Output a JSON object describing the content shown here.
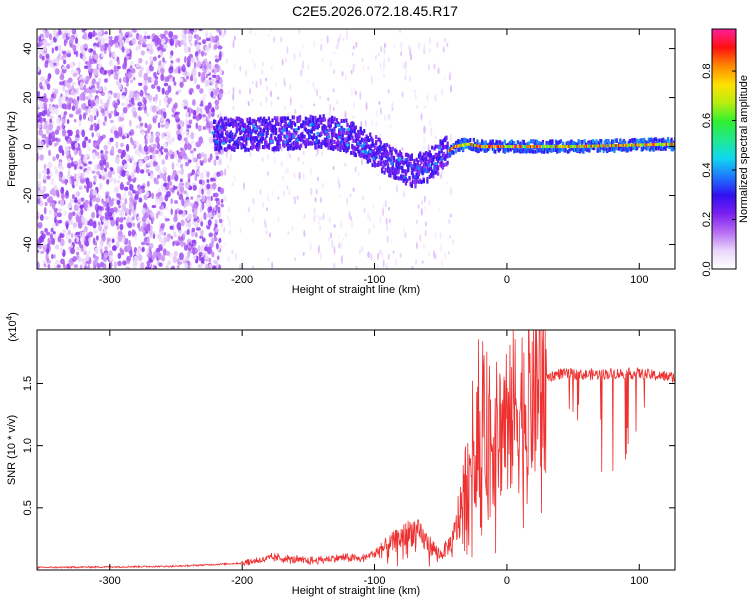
{
  "title": "C2E5.2026.072.18.45.R17",
  "chart_data": [
    {
      "type": "heatmap",
      "xlabel": "Height of straight line (km)",
      "ylabel": "Frequency (Hz)",
      "xlim": [
        -355,
        127
      ],
      "ylim": [
        -50,
        48
      ],
      "xticks": [
        -300,
        -200,
        -100,
        0,
        100
      ],
      "xtick_labels": [
        "-300",
        "-200",
        "-100",
        "0",
        "100"
      ],
      "yticks": [
        -40,
        -20,
        0,
        20,
        40
      ],
      "ytick_labels": [
        "-40",
        "-20",
        "0",
        "20",
        "40"
      ],
      "colorbar": {
        "label": "Normalized spectral amplitude",
        "range": [
          0,
          0.97
        ],
        "ticks": [
          0.0,
          0.2,
          0.4,
          0.6,
          0.8
        ],
        "tick_labels": [
          "0.0",
          "0.2",
          "0.4",
          "0.6",
          "0.8"
        ],
        "colors": [
          "#ffffff",
          "#e9d6fb",
          "#b76cf2",
          "#7a1ff0",
          "#3010f0",
          "#1e78ff",
          "#10d8f0",
          "#20e890",
          "#30f030",
          "#b8ee10",
          "#ffe000",
          "#ff8800",
          "#ff1010",
          "#ff1f9a"
        ]
      },
      "ridge_center_hz": [
        {
          "x": -222,
          "y": 5
        },
        {
          "x": -180,
          "y": 5
        },
        {
          "x": -140,
          "y": 6
        },
        {
          "x": -120,
          "y": 4
        },
        {
          "x": -100,
          "y": -2
        },
        {
          "x": -85,
          "y": -8
        },
        {
          "x": -70,
          "y": -10
        },
        {
          "x": -60,
          "y": -8
        },
        {
          "x": -50,
          "y": -4
        },
        {
          "x": -40,
          "y": 0
        },
        {
          "x": -30,
          "y": 1
        },
        {
          "x": -20,
          "y": 0
        },
        {
          "x": 0,
          "y": 0
        },
        {
          "x": 50,
          "y": 0
        },
        {
          "x": 127,
          "y": 1
        }
      ]
    },
    {
      "type": "line",
      "xlabel": "Height of straight line (km)",
      "ylabel": "SNR (10 * v/v)",
      "multiplier_label": "(x10",
      "multiplier_exp": "4",
      "multiplier_close": ")",
      "xlim": [
        -355,
        127
      ],
      "ylim": [
        0,
        19300
      ],
      "xticks": [
        -300,
        -200,
        -100,
        0,
        100
      ],
      "xtick_labels": [
        "-300",
        "-200",
        "-100",
        "0",
        "100"
      ],
      "yticks": [
        5000,
        10000,
        15000
      ],
      "ytick_labels": [
        "0.5",
        "1.0",
        "1.5"
      ],
      "color": "#ee3030",
      "series": [
        {
          "name": "SNR",
          "points": [
            {
              "x": -355,
              "y": 200
            },
            {
              "x": -300,
              "y": 250
            },
            {
              "x": -250,
              "y": 300
            },
            {
              "x": -200,
              "y": 550
            },
            {
              "x": -175,
              "y": 1000
            },
            {
              "x": -150,
              "y": 700
            },
            {
              "x": -125,
              "y": 1000
            },
            {
              "x": -110,
              "y": 900
            },
            {
              "x": -95,
              "y": 1600
            },
            {
              "x": -80,
              "y": 2600
            },
            {
              "x": -70,
              "y": 3200
            },
            {
              "x": -60,
              "y": 2200
            },
            {
              "x": -50,
              "y": 1200
            },
            {
              "x": -40,
              "y": 2500
            },
            {
              "x": -35,
              "y": 5000
            },
            {
              "x": -30,
              "y": 7500
            },
            {
              "x": -25,
              "y": 10500
            },
            {
              "x": -20,
              "y": 12000
            },
            {
              "x": -15,
              "y": 11500
            },
            {
              "x": -10,
              "y": 10500
            },
            {
              "x": -5,
              "y": 11500
            },
            {
              "x": 0,
              "y": 12500
            },
            {
              "x": 10,
              "y": 13000
            },
            {
              "x": 20,
              "y": 14500
            },
            {
              "x": 30,
              "y": 15500
            },
            {
              "x": 40,
              "y": 15800
            },
            {
              "x": 60,
              "y": 15700
            },
            {
              "x": 80,
              "y": 15800
            },
            {
              "x": 100,
              "y": 15800
            },
            {
              "x": 115,
              "y": 15600
            },
            {
              "x": 127,
              "y": 15500
            }
          ]
        }
      ]
    }
  ]
}
